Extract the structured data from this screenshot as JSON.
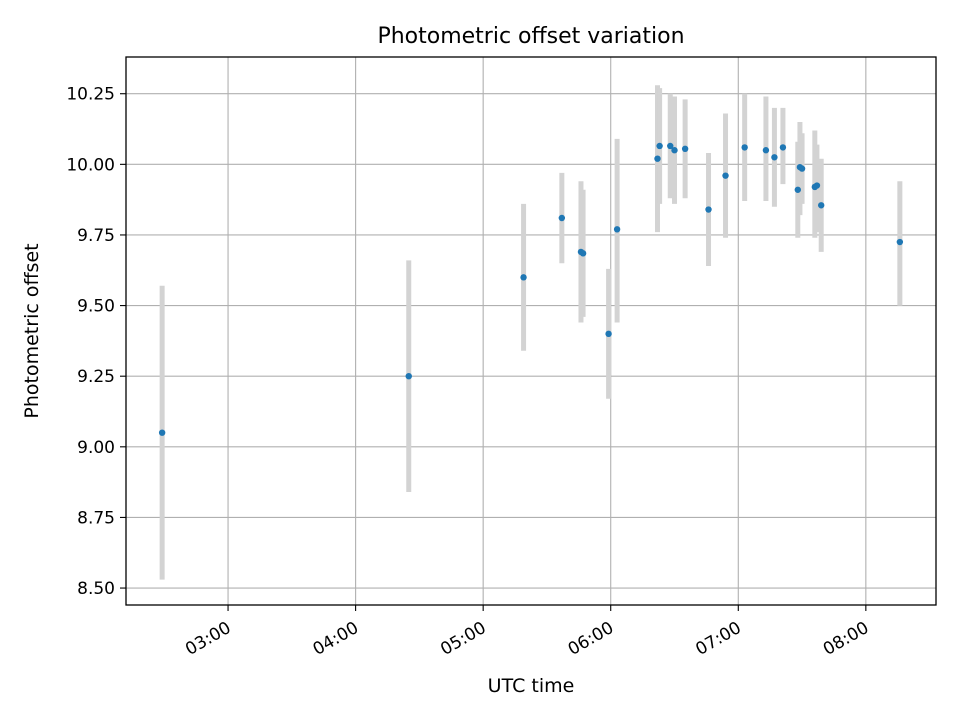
{
  "chart_data": {
    "type": "scatter",
    "title": "Photometric offset variation",
    "xlabel": "UTC time",
    "ylabel": "Photometric offset",
    "xlim": [
      "02:12",
      "08:33"
    ],
    "ylim": [
      8.44,
      10.38
    ],
    "xticks": [
      "03:00",
      "04:00",
      "05:00",
      "06:00",
      "07:00",
      "08:00"
    ],
    "yticks": [
      "8.50",
      "8.75",
      "9.00",
      "9.25",
      "9.50",
      "9.75",
      "10.00",
      "10.25"
    ],
    "grid": true,
    "marker_color": "#1f77b4",
    "errorbar_color": "#d3d3d3",
    "points": [
      {
        "time": "02:29",
        "y": 9.05,
        "err_low": 8.53,
        "err_high": 9.57
      },
      {
        "time": "04:25",
        "y": 9.25,
        "err_low": 8.84,
        "err_high": 9.66
      },
      {
        "time": "05:19",
        "y": 9.6,
        "err_low": 9.34,
        "err_high": 9.86
      },
      {
        "time": "05:37",
        "y": 9.81,
        "err_low": 9.65,
        "err_high": 9.97
      },
      {
        "time": "05:46",
        "y": 9.69,
        "err_low": 9.44,
        "err_high": 9.94
      },
      {
        "time": "05:47",
        "y": 9.685,
        "err_low": 9.46,
        "err_high": 9.91
      },
      {
        "time": "05:59",
        "y": 9.4,
        "err_low": 9.17,
        "err_high": 9.63
      },
      {
        "time": "06:03",
        "y": 9.77,
        "err_low": 9.44,
        "err_high": 10.09
      },
      {
        "time": "06:22",
        "y": 10.02,
        "err_low": 9.76,
        "err_high": 10.28
      },
      {
        "time": "06:23",
        "y": 10.065,
        "err_low": 9.86,
        "err_high": 10.27
      },
      {
        "time": "06:28",
        "y": 10.065,
        "err_low": 9.88,
        "err_high": 10.25
      },
      {
        "time": "06:30",
        "y": 10.05,
        "err_low": 9.86,
        "err_high": 10.24
      },
      {
        "time": "06:35",
        "y": 10.055,
        "err_low": 9.88,
        "err_high": 10.23
      },
      {
        "time": "06:46",
        "y": 9.84,
        "err_low": 9.64,
        "err_high": 10.04
      },
      {
        "time": "06:54",
        "y": 9.96,
        "err_low": 9.74,
        "err_high": 10.18
      },
      {
        "time": "07:03",
        "y": 10.06,
        "err_low": 9.87,
        "err_high": 10.25
      },
      {
        "time": "07:13",
        "y": 10.05,
        "err_low": 9.87,
        "err_high": 10.24
      },
      {
        "time": "07:17",
        "y": 10.025,
        "err_low": 9.85,
        "err_high": 10.2
      },
      {
        "time": "07:21",
        "y": 10.06,
        "err_low": 9.93,
        "err_high": 10.2
      },
      {
        "time": "07:28",
        "y": 9.91,
        "err_low": 9.74,
        "err_high": 10.08
      },
      {
        "time": "07:29",
        "y": 9.99,
        "err_low": 9.82,
        "err_high": 10.15
      },
      {
        "time": "07:30",
        "y": 9.985,
        "err_low": 9.86,
        "err_high": 10.11
      },
      {
        "time": "07:36",
        "y": 9.92,
        "err_low": 9.74,
        "err_high": 10.12
      },
      {
        "time": "07:37",
        "y": 9.925,
        "err_low": 9.76,
        "err_high": 10.07
      },
      {
        "time": "07:39",
        "y": 9.855,
        "err_low": 9.69,
        "err_high": 10.02
      },
      {
        "time": "08:16",
        "y": 9.725,
        "err_low": 9.5,
        "err_high": 9.94
      }
    ]
  }
}
